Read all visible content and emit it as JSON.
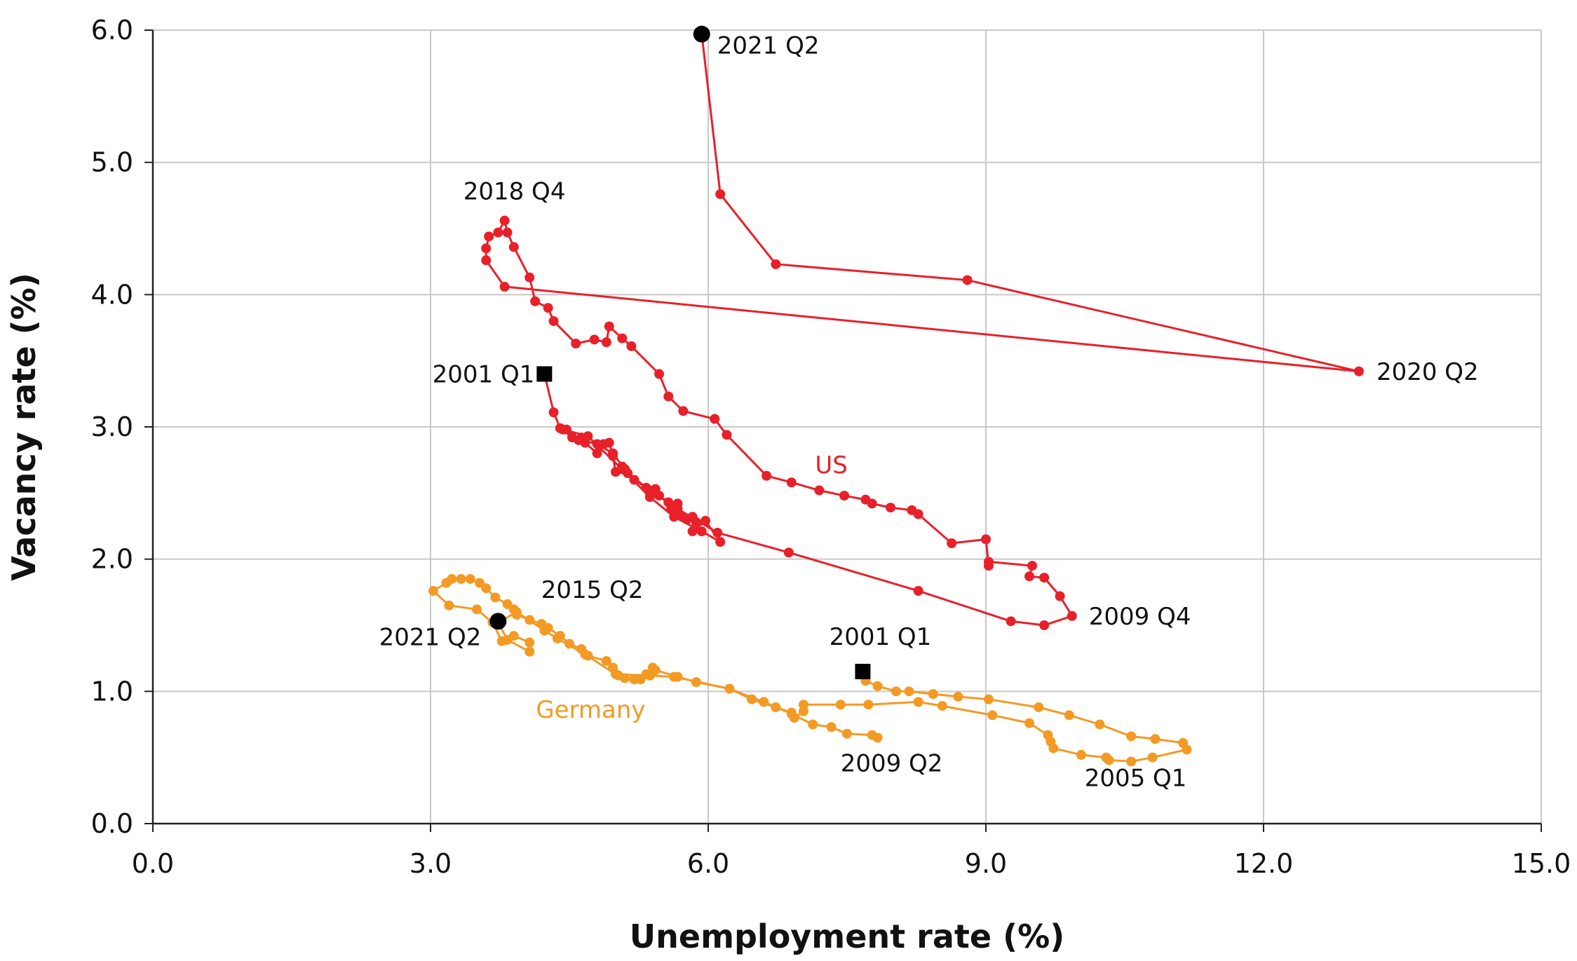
{
  "chart_data": {
    "type": "scatter",
    "title": "",
    "xlabel": "Unemployment rate (%)",
    "ylabel": "Vacancy rate (%)",
    "xlim": [
      0,
      15
    ],
    "ylim": [
      0,
      6
    ],
    "x_ticks": [
      "0.0",
      "3.0",
      "6.0",
      "9.0",
      "12.0",
      "15.0"
    ],
    "y_ticks": [
      "0.0",
      "1.0",
      "2.0",
      "3.0",
      "4.0",
      "5.0",
      "6.0"
    ],
    "grid": true,
    "series": [
      {
        "name": "US",
        "color": "#e8202a",
        "connected": true,
        "points": [
          [
            4.23,
            3.4
          ],
          [
            4.33,
            3.11
          ],
          [
            4.4,
            2.99
          ],
          [
            4.47,
            2.98
          ],
          [
            4.6,
            2.9
          ],
          [
            4.63,
            2.92
          ],
          [
            4.67,
            2.88
          ],
          [
            4.8,
            2.8
          ],
          [
            4.87,
            2.87
          ],
          [
            4.93,
            2.88
          ],
          [
            4.97,
            2.78
          ],
          [
            5.0,
            2.66
          ],
          [
            5.07,
            2.7
          ],
          [
            5.1,
            2.68
          ],
          [
            5.2,
            2.6
          ],
          [
            5.33,
            2.54
          ],
          [
            5.37,
            2.5
          ],
          [
            5.43,
            2.53
          ],
          [
            5.47,
            2.48
          ],
          [
            5.57,
            2.43
          ],
          [
            5.6,
            2.38
          ],
          [
            5.67,
            2.42
          ],
          [
            5.7,
            2.33
          ],
          [
            5.77,
            2.3
          ],
          [
            5.83,
            2.32
          ],
          [
            5.87,
            2.28
          ],
          [
            5.83,
            2.21
          ],
          [
            5.97,
            2.29
          ],
          [
            6.13,
            2.13
          ],
          [
            5.93,
            2.21
          ],
          [
            5.63,
            2.32
          ],
          [
            5.37,
            2.47
          ],
          [
            5.07,
            2.68
          ],
          [
            4.7,
            2.93
          ],
          [
            4.43,
            2.98
          ],
          [
            4.53,
            2.92
          ],
          [
            4.8,
            2.87
          ],
          [
            4.97,
            2.8
          ],
          [
            5.13,
            2.65
          ],
          [
            5.37,
            2.52
          ],
          [
            5.67,
            2.38
          ],
          [
            6.1,
            2.2
          ],
          [
            6.87,
            2.05
          ],
          [
            8.27,
            1.76
          ],
          [
            9.27,
            1.53
          ],
          [
            9.63,
            1.5
          ],
          [
            9.93,
            1.57
          ],
          [
            9.8,
            1.72
          ],
          [
            9.63,
            1.86
          ],
          [
            9.47,
            1.87
          ],
          [
            9.5,
            1.95
          ],
          [
            9.03,
            1.98
          ],
          [
            9.03,
            1.95
          ],
          [
            9.0,
            2.15
          ],
          [
            8.63,
            2.12
          ],
          [
            8.27,
            2.34
          ],
          [
            8.2,
            2.37
          ],
          [
            7.97,
            2.39
          ],
          [
            7.77,
            2.42
          ],
          [
            7.7,
            2.45
          ],
          [
            7.47,
            2.48
          ],
          [
            7.2,
            2.52
          ],
          [
            6.9,
            2.58
          ],
          [
            6.63,
            2.63
          ],
          [
            6.2,
            2.94
          ],
          [
            6.07,
            3.06
          ],
          [
            5.73,
            3.12
          ],
          [
            5.57,
            3.23
          ],
          [
            5.47,
            3.4
          ],
          [
            5.17,
            3.61
          ],
          [
            5.07,
            3.67
          ],
          [
            4.93,
            3.76
          ],
          [
            4.9,
            3.64
          ],
          [
            4.77,
            3.66
          ],
          [
            4.57,
            3.63
          ],
          [
            4.33,
            3.8
          ],
          [
            4.27,
            3.9
          ],
          [
            4.13,
            3.95
          ],
          [
            4.07,
            4.13
          ],
          [
            3.9,
            4.36
          ],
          [
            3.83,
            4.47
          ],
          [
            3.8,
            4.56
          ],
          [
            3.73,
            4.47
          ],
          [
            3.63,
            4.44
          ],
          [
            3.6,
            4.35
          ],
          [
            3.6,
            4.26
          ],
          [
            3.8,
            4.06
          ],
          [
            13.03,
            3.42
          ],
          [
            8.8,
            4.11
          ],
          [
            6.73,
            4.23
          ],
          [
            6.13,
            4.76
          ],
          [
            5.93,
            5.97
          ]
        ]
      },
      {
        "name": "Germany",
        "color": "#f39a24",
        "connected": true,
        "points": [
          [
            7.67,
            1.15
          ],
          [
            7.7,
            1.08
          ],
          [
            7.83,
            1.04
          ],
          [
            8.03,
            1.0
          ],
          [
            8.17,
            1.0
          ],
          [
            8.43,
            0.98
          ],
          [
            8.7,
            0.96
          ],
          [
            9.03,
            0.94
          ],
          [
            9.57,
            0.88
          ],
          [
            9.9,
            0.82
          ],
          [
            10.23,
            0.75
          ],
          [
            10.57,
            0.66
          ],
          [
            10.83,
            0.64
          ],
          [
            11.13,
            0.61
          ],
          [
            11.17,
            0.56
          ],
          [
            10.8,
            0.5
          ],
          [
            10.57,
            0.47
          ],
          [
            10.33,
            0.48
          ],
          [
            10.3,
            0.5
          ],
          [
            10.03,
            0.52
          ],
          [
            9.73,
            0.57
          ],
          [
            9.7,
            0.62
          ],
          [
            9.67,
            0.67
          ],
          [
            9.47,
            0.76
          ],
          [
            9.07,
            0.82
          ],
          [
            8.53,
            0.89
          ],
          [
            8.27,
            0.92
          ],
          [
            7.73,
            0.9
          ],
          [
            7.43,
            0.9
          ],
          [
            7.03,
            0.9
          ],
          [
            7.03,
            0.85
          ],
          [
            6.93,
            0.8
          ],
          [
            6.9,
            0.84
          ],
          [
            6.73,
            0.88
          ],
          [
            6.47,
            0.94
          ],
          [
            6.23,
            1.02
          ],
          [
            5.87,
            1.07
          ],
          [
            5.67,
            1.11
          ],
          [
            5.43,
            1.16
          ],
          [
            5.4,
            1.18
          ],
          [
            5.37,
            1.12
          ],
          [
            5.33,
            1.13
          ],
          [
            5.27,
            1.09
          ],
          [
            5.2,
            1.09
          ],
          [
            5.1,
            1.1
          ],
          [
            5.03,
            1.12
          ],
          [
            4.97,
            1.18
          ],
          [
            4.9,
            1.23
          ],
          [
            4.7,
            1.27
          ],
          [
            4.63,
            1.32
          ],
          [
            4.5,
            1.36
          ],
          [
            4.4,
            1.42
          ],
          [
            4.27,
            1.48
          ],
          [
            4.2,
            1.51
          ],
          [
            4.07,
            1.54
          ],
          [
            3.93,
            1.58
          ],
          [
            3.9,
            1.62
          ],
          [
            3.83,
            1.66
          ],
          [
            3.7,
            1.71
          ],
          [
            3.6,
            1.78
          ],
          [
            3.53,
            1.82
          ],
          [
            3.43,
            1.85
          ],
          [
            3.33,
            1.85
          ],
          [
            3.23,
            1.85
          ],
          [
            3.17,
            1.82
          ],
          [
            3.03,
            1.76
          ],
          [
            3.2,
            1.65
          ],
          [
            3.5,
            1.62
          ],
          [
            3.67,
            1.52
          ],
          [
            3.77,
            1.38
          ],
          [
            3.9,
            1.42
          ],
          [
            4.07,
            1.37
          ],
          [
            4.07,
            1.3
          ],
          [
            3.83,
            1.39
          ],
          [
            3.73,
            1.52
          ],
          [
            3.93,
            1.6
          ],
          [
            4.23,
            1.46
          ],
          [
            4.37,
            1.4
          ],
          [
            4.67,
            1.28
          ],
          [
            5.0,
            1.13
          ],
          [
            5.37,
            1.12
          ],
          [
            5.63,
            1.11
          ],
          [
            6.23,
            1.02
          ],
          [
            6.6,
            0.92
          ],
          [
            6.9,
            0.83
          ],
          [
            7.13,
            0.75
          ],
          [
            7.33,
            0.73
          ],
          [
            7.5,
            0.68
          ],
          [
            7.77,
            0.67
          ],
          [
            7.83,
            0.65
          ]
        ]
      }
    ],
    "markers": [
      {
        "series": "US",
        "shape": "square",
        "x": 4.23,
        "y": 3.4,
        "label": "2001 Q1"
      },
      {
        "series": "US",
        "shape": "circle",
        "x": 5.93,
        "y": 5.97,
        "label": "2021 Q2"
      },
      {
        "series": "Germany",
        "shape": "square",
        "x": 7.67,
        "y": 1.15,
        "label": "2001 Q1"
      },
      {
        "series": "Germany",
        "shape": "circle",
        "x": 3.73,
        "y": 1.53,
        "label": "2021 Q2"
      }
    ],
    "annotations": [
      {
        "text": "2021 Q2",
        "x": 5.93,
        "y": 5.97,
        "anchor": "start",
        "dx": 22,
        "dy": 28
      },
      {
        "text": "2018 Q4",
        "x": 3.8,
        "y": 4.56,
        "anchor": "middle",
        "dx": 14,
        "dy": -30
      },
      {
        "text": "2001 Q1",
        "x": 4.23,
        "y": 3.4,
        "anchor": "end",
        "dx": -14,
        "dy": 12
      },
      {
        "text": "2020 Q2",
        "x": 13.03,
        "y": 3.42,
        "anchor": "start",
        "dx": 25,
        "dy": 12
      },
      {
        "text": "2009 Q4",
        "x": 9.93,
        "y": 1.57,
        "anchor": "start",
        "dx": 24,
        "dy": 12
      },
      {
        "text": "2015 Q2",
        "x": 3.93,
        "y": 1.6,
        "anchor": "start",
        "dx": 35,
        "dy": -20
      },
      {
        "text": "2021 Q2",
        "x": 3.73,
        "y": 1.53,
        "anchor": "end",
        "dx": -24,
        "dy": 34
      },
      {
        "text": "2001 Q1",
        "x": 7.67,
        "y": 1.15,
        "anchor": "middle",
        "dx": 25,
        "dy": -38
      },
      {
        "text": "2009 Q2",
        "x": 7.83,
        "y": 0.65,
        "anchor": "middle",
        "dx": 20,
        "dy": 48
      },
      {
        "text": "2005 Q1",
        "x": 11.17,
        "y": 0.56,
        "anchor": "end",
        "dx": 0,
        "dy": 52
      }
    ],
    "series_labels": [
      {
        "text": "US",
        "x": 7.33,
        "y": 2.65,
        "color": "#e8202a"
      },
      {
        "text": "Germany",
        "x": 4.73,
        "y": 0.8,
        "color": "#f39a24"
      }
    ]
  }
}
